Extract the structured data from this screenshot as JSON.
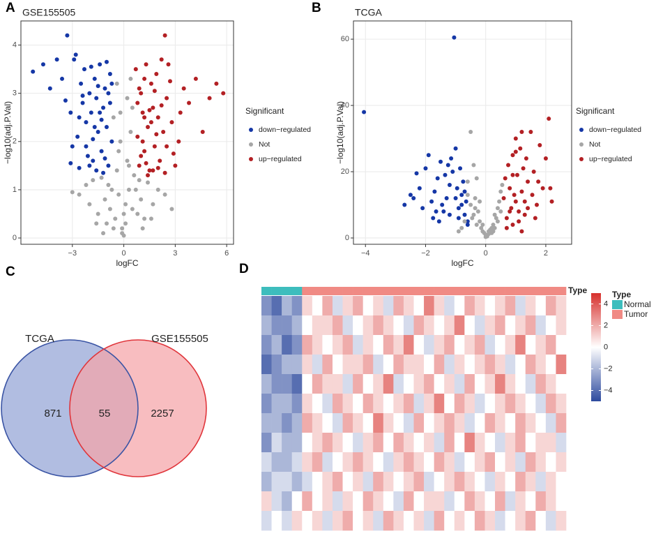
{
  "chart_data": [
    {
      "type": "scatter",
      "panel": "A",
      "title": "GSE155505",
      "x_label": "logFC",
      "y_label": "−log10(adj.P.Val)",
      "xlim": [
        -6.0,
        6.4
      ],
      "ylim": [
        -0.13,
        4.5
      ],
      "xticks": [
        {
          "value": -3,
          "label": "−3"
        },
        0,
        3,
        6
      ],
      "yticks": [
        0,
        1,
        2,
        3,
        4
      ],
      "grid": true,
      "legend_title": "Significant",
      "series": [
        {
          "name": "down−regulated",
          "color": "#1537a6",
          "x": [
            -5.3,
            -4.7,
            -4.3,
            -3.9,
            -3.6,
            -3.3,
            -3.1,
            -3.0,
            -2.8,
            -2.7,
            -2.6,
            -2.5,
            -2.4,
            -2.3,
            -2.2,
            -2.1,
            -2.0,
            -1.9,
            -1.8,
            -1.7,
            -1.6,
            -1.5,
            -1.4,
            -1.3,
            -1.2,
            -1.1,
            -1.0,
            -0.9,
            -0.8,
            -0.7,
            -2.9,
            -2.6,
            -2.2,
            -1.9,
            -1.6,
            -1.3,
            -1.0,
            -0.8,
            -1.5,
            -1.2,
            -2.4,
            -1.8,
            -1.1,
            -0.7,
            -3.4,
            -2.0,
            -1.4,
            -0.9,
            -3.1,
            -1.7
          ],
          "values": [
            3.45,
            3.6,
            3.1,
            3.7,
            3.3,
            4.2,
            2.6,
            1.9,
            3.8,
            2.1,
            1.45,
            3.2,
            2.8,
            3.5,
            2.4,
            1.7,
            3.0,
            2.6,
            1.6,
            3.3,
            2.9,
            2.2,
            3.6,
            1.8,
            2.7,
            3.1,
            2.3,
            1.5,
            3.4,
            2.0,
            3.7,
            2.5,
            1.9,
            3.55,
            1.4,
            2.45,
            3.65,
            2.8,
            3.15,
            1.35,
            2.95,
            2.05,
            1.65,
            3.2,
            2.85,
            1.5,
            2.6,
            3.0,
            1.55,
            2.3
          ]
        },
        {
          "name": "Not",
          "color": "#a6a6a6",
          "x": [
            -3.0,
            -2.6,
            -2.2,
            -2.0,
            -1.8,
            -1.5,
            -1.3,
            -1.1,
            -1.0,
            -0.9,
            -0.8,
            -0.7,
            -0.6,
            -0.5,
            -0.4,
            -0.3,
            -0.2,
            -0.1,
            0,
            0.1,
            0.2,
            0.3,
            0.4,
            0.5,
            0.6,
            0.7,
            0.8,
            0.9,
            1.0,
            1.2,
            1.4,
            1.7,
            2.0,
            2.4,
            2.8,
            -0.3,
            0.3,
            -0.2,
            0.2,
            -0.6,
            0.5,
            -1.2,
            1.1,
            -0.4,
            0.4,
            0.0,
            -1.6,
            1.6,
            -0.1,
            0.1
          ],
          "values": [
            0.95,
            0.9,
            1.1,
            0.7,
            1.2,
            0.5,
            1.25,
            0.8,
            0.3,
            1.1,
            0.6,
            1.0,
            2.5,
            0.4,
            3.2,
            1.8,
            2.6,
            0.2,
            0.05,
            0.3,
            2.9,
            1.5,
            2.2,
            0.6,
            1.3,
            1.0,
            0.5,
            1.2,
            0.8,
            0.4,
            1.15,
            0.7,
            1.0,
            0.9,
            0.6,
            0.9,
            1.0,
            2.0,
            1.6,
            0.2,
            2.7,
            0.1,
            0.2,
            1.4,
            3.3,
            0.5,
            0.3,
            0.4,
            0.1,
            0.7
          ]
        },
        {
          "name": "up−regulated",
          "color": "#b32024",
          "x": [
            0.7,
            0.8,
            0.9,
            1.0,
            1.1,
            1.2,
            1.3,
            1.4,
            1.5,
            1.6,
            1.7,
            1.8,
            1.9,
            2.0,
            2.1,
            2.2,
            2.3,
            2.4,
            2.5,
            2.6,
            2.8,
            3.0,
            3.2,
            3.5,
            3.8,
            4.2,
            4.6,
            5.0,
            5.4,
            5.8,
            0.8,
            1.0,
            1.2,
            1.4,
            1.6,
            1.8,
            2.0,
            2.2,
            0.9,
            1.1,
            1.3,
            1.5,
            1.7,
            2.5,
            2.7,
            2.9,
            3.3,
            2.4,
            1.9,
            1.2
          ],
          "values": [
            3.5,
            2.1,
            1.5,
            3.0,
            2.6,
            1.8,
            3.6,
            2.3,
            1.4,
            3.2,
            2.7,
            1.9,
            3.4,
            2.5,
            1.6,
            3.7,
            2.2,
            1.35,
            2.9,
            3.6,
            2.4,
            1.5,
            2.0,
            3.1,
            2.8,
            3.3,
            2.2,
            2.9,
            3.2,
            3.0,
            2.8,
            1.7,
            3.3,
            1.3,
            2.4,
            3.05,
            1.45,
            2.75,
            3.1,
            2.0,
            1.55,
            2.65,
            1.4,
            1.9,
            3.25,
            1.75,
            2.6,
            4.2,
            2.15,
            2.5
          ]
        }
      ]
    },
    {
      "type": "scatter",
      "panel": "B",
      "title": "TCGA",
      "x_label": "logFC",
      "y_label": "−log10(adj.P.Val)",
      "xlim": [
        -4.4,
        2.86
      ],
      "ylim": [
        -1.9,
        65.5
      ],
      "xticks": [
        {
          "value": -4,
          "label": "−4"
        },
        {
          "value": -2,
          "label": "−2"
        },
        0,
        2
      ],
      "yticks": [
        0,
        20,
        40,
        60
      ],
      "grid": true,
      "legend_title": "Significant",
      "series": [
        {
          "name": "down−regulated",
          "color": "#1537a6",
          "x": [
            -4.05,
            -2.7,
            -2.5,
            -2.3,
            -2.2,
            -2.0,
            -1.9,
            -1.8,
            -1.7,
            -1.6,
            -1.5,
            -1.4,
            -1.3,
            -1.2,
            -1.1,
            -1.0,
            -0.9,
            -0.8,
            -0.7,
            -0.6,
            -1.05,
            -2.1,
            -1.75,
            -1.45,
            -1.25,
            -0.95,
            -0.75,
            -0.65,
            -1.55,
            -1.15,
            -0.85,
            -1.35,
            -1.65,
            -2.4,
            -0.9,
            -0.7,
            -1.0,
            -1.2,
            -0.8,
            -0.6
          ],
          "values": [
            38,
            10,
            13,
            19.5,
            15,
            21,
            25,
            11,
            14,
            18,
            23,
            8,
            12,
            16,
            20,
            27,
            9,
            13,
            7,
            4,
            60.5,
            9,
            6,
            10,
            22,
            15,
            17,
            11,
            5,
            24,
            21,
            19,
            8,
            12,
            6,
            14,
            12,
            7,
            10,
            5
          ]
        },
        {
          "name": "Not",
          "color": "#a6a6a6",
          "x": [
            -0.9,
            -0.7,
            -0.5,
            -0.4,
            -0.3,
            -0.2,
            -0.1,
            0,
            0.1,
            0.2,
            0.3,
            0.4,
            0.5,
            -0.6,
            -0.45,
            -0.35,
            -0.25,
            -0.15,
            -0.05,
            0.05,
            0.15,
            0.25,
            0.35,
            0.45,
            0.55,
            -0.5,
            -0.3,
            -0.1,
            0.1,
            0.3,
            0.5,
            -0.6,
            -0.4,
            -0.2,
            0.0,
            0.2,
            0.4,
            -0.35,
            0.25,
            -0.8
          ],
          "values": [
            2,
            5,
            32,
            22,
            18,
            11,
            4,
            1,
            2,
            3,
            7,
            9,
            14,
            17,
            6,
            12,
            8,
            3,
            1.5,
            0.5,
            2.5,
            4,
            6,
            11,
            16,
            10,
            4,
            2,
            1.2,
            3,
            8,
            13,
            7,
            5,
            0.3,
            1.5,
            5,
            9,
            2,
            3
          ]
        },
        {
          "name": "up−regulated",
          "color": "#b32024",
          "x": [
            0.6,
            0.65,
            0.7,
            0.75,
            0.8,
            0.85,
            0.9,
            0.95,
            1.0,
            1.05,
            1.1,
            1.15,
            1.2,
            1.25,
            1.3,
            1.35,
            1.4,
            1.5,
            1.6,
            1.7,
            1.8,
            1.9,
            2.0,
            2.1,
            2.15,
            2.2,
            0.7,
            0.8,
            0.9,
            1.0,
            1.1,
            1.2,
            1.3,
            1.4,
            1.55,
            1.65,
            1.75,
            0.9,
            1.0,
            1.2
          ],
          "values": [
            12,
            18,
            6,
            22,
            15,
            9,
            25,
            13,
            30,
            19,
            8,
            27,
            14,
            21,
            11,
            24,
            17,
            32,
            20,
            10,
            28,
            15,
            24,
            36,
            15,
            11,
            3,
            8,
            4,
            11,
            5,
            2,
            7,
            9,
            13,
            6,
            17,
            19,
            26,
            32
          ]
        }
      ]
    },
    {
      "type": "venn",
      "panel": "C",
      "sets": [
        {
          "name": "TCGA",
          "color": "#b1bde1",
          "stroke": "#3a54a4"
        },
        {
          "name": "GSE155505",
          "color": "#f5a3a7",
          "stroke": "#e0353b"
        }
      ],
      "values": [
        871,
        55,
        2257
      ]
    },
    {
      "type": "heatmap",
      "panel": "D",
      "annotation_label": "Type",
      "legend_title": "Type",
      "type_levels": [
        {
          "name": "Normal",
          "color": "#3dbdbd"
        },
        {
          "name": "Tumor",
          "color": "#f08a84"
        }
      ],
      "column_type": [
        0,
        0,
        0,
        0,
        1,
        1,
        1,
        1,
        1,
        1,
        1,
        1,
        1,
        1,
        1,
        1,
        1,
        1,
        1,
        1,
        1,
        1,
        1,
        1,
        1,
        1,
        1,
        1,
        1,
        1
      ],
      "zlim": [
        -5,
        5
      ],
      "zticks": [
        4,
        2,
        0,
        {
          "value": -2,
          "label": "−2"
        },
        {
          "value": -4,
          "label": "−4"
        }
      ],
      "colors": [
        "#2d4a9e",
        "#ffffff",
        "#d7302c"
      ],
      "values": [
        [
          -3,
          -4,
          -2,
          -3,
          1,
          0,
          2,
          -1,
          1,
          2,
          0,
          1,
          -1,
          2,
          1,
          0,
          3,
          1,
          -1,
          0,
          2,
          1,
          0,
          1,
          2,
          -1,
          1,
          0,
          2,
          1
        ],
        [
          -2,
          -3,
          -3,
          -2,
          0,
          1,
          1,
          2,
          -1,
          0,
          1,
          2,
          1,
          0,
          -1,
          2,
          1,
          0,
          1,
          3,
          0,
          -1,
          1,
          2,
          0,
          1,
          2,
          -1,
          0,
          1
        ],
        [
          -3,
          -2,
          -4,
          -3,
          2,
          1,
          0,
          1,
          2,
          -1,
          1,
          0,
          2,
          1,
          3,
          0,
          -1,
          1,
          2,
          0,
          1,
          2,
          -1,
          0,
          1,
          3,
          0,
          1,
          2,
          0
        ],
        [
          -4,
          -3,
          -2,
          -2,
          1,
          -1,
          2,
          0,
          1,
          1,
          2,
          -1,
          0,
          2,
          1,
          1,
          0,
          2,
          -1,
          1,
          0,
          1,
          2,
          1,
          -1,
          0,
          2,
          1,
          0,
          3
        ],
        [
          -2,
          -3,
          -3,
          -4,
          0,
          2,
          1,
          1,
          -1,
          2,
          0,
          1,
          3,
          -1,
          0,
          1,
          2,
          0,
          1,
          -1,
          2,
          0,
          1,
          3,
          1,
          0,
          -1,
          2,
          1,
          0
        ],
        [
          -3,
          -2,
          -2,
          -3,
          1,
          0,
          -1,
          2,
          1,
          0,
          2,
          1,
          0,
          1,
          2,
          -1,
          1,
          3,
          0,
          2,
          1,
          -1,
          0,
          1,
          2,
          1,
          0,
          -1,
          2,
          1
        ],
        [
          -2,
          -2,
          -3,
          -2,
          2,
          1,
          0,
          -1,
          2,
          1,
          0,
          3,
          1,
          0,
          -1,
          2,
          0,
          1,
          2,
          1,
          -1,
          0,
          2,
          1,
          0,
          2,
          1,
          0,
          -1,
          2
        ],
        [
          -3,
          -1,
          -2,
          -2,
          0,
          1,
          2,
          1,
          0,
          -1,
          1,
          2,
          0,
          2,
          1,
          0,
          1,
          -1,
          2,
          0,
          3,
          1,
          0,
          -1,
          1,
          2,
          0,
          1,
          1,
          -1
        ],
        [
          -1,
          -2,
          -2,
          -1,
          1,
          2,
          -1,
          0,
          1,
          2,
          1,
          0,
          -1,
          1,
          2,
          1,
          0,
          2,
          1,
          -1,
          0,
          1,
          2,
          0,
          1,
          -1,
          2,
          1,
          0,
          1
        ],
        [
          -2,
          -1,
          -1,
          -2,
          -1,
          0,
          1,
          2,
          0,
          1,
          -1,
          2,
          1,
          0,
          1,
          2,
          -1,
          0,
          1,
          2,
          1,
          0,
          -1,
          1,
          0,
          2,
          1,
          -1,
          1,
          0
        ],
        [
          1,
          -1,
          -2,
          0,
          2,
          0,
          1,
          -1,
          1,
          0,
          2,
          1,
          0,
          -1,
          2,
          0,
          1,
          1,
          -1,
          0,
          2,
          1,
          0,
          2,
          -1,
          1,
          0,
          2,
          1,
          0
        ],
        [
          -1,
          0,
          -1,
          1,
          0,
          1,
          -1,
          1,
          2,
          0,
          1,
          -1,
          2,
          1,
          0,
          1,
          -1,
          2,
          0,
          1,
          0,
          2,
          1,
          -1,
          0,
          1,
          2,
          0,
          -1,
          1
        ]
      ]
    }
  ]
}
